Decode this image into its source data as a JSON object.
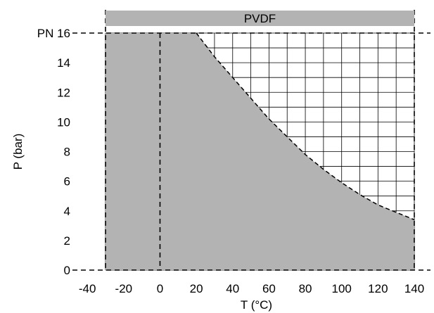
{
  "chart_data": {
    "type": "area",
    "title": "PVDF",
    "xlabel": "T (°C)",
    "ylabel": "P (bar)",
    "xlim": [
      -40,
      140
    ],
    "ylim": [
      0,
      16
    ],
    "x_ticks": [
      "-40",
      "-20",
      "0",
      "20",
      "40",
      "60",
      "80",
      "100",
      "120",
      "140"
    ],
    "x_tick_values": [
      -40,
      -20,
      0,
      20,
      40,
      60,
      80,
      100,
      120,
      140
    ],
    "y_ticks": [
      "0",
      "2",
      "4",
      "6",
      "8",
      "10",
      "12",
      "14",
      "PN 16"
    ],
    "y_tick_values": [
      0,
      2,
      4,
      6,
      8,
      10,
      12,
      14,
      16
    ],
    "grid": true,
    "series": [
      {
        "x": [
          -30,
          20,
          25,
          30,
          40,
          50,
          60,
          70,
          80,
          90,
          100,
          110,
          120,
          130,
          140,
          140
        ],
        "y": [
          16,
          16,
          15.2,
          14.4,
          13.0,
          11.6,
          10.2,
          9.0,
          7.8,
          6.8,
          5.9,
          5.1,
          4.4,
          3.9,
          3.4,
          0
        ],
        "fill": "#b3b3b3",
        "line_style": "dashed"
      }
    ],
    "reference_lines": {
      "vertical": [
        -30,
        0,
        140
      ],
      "horizontal": [
        0,
        16
      ]
    }
  },
  "colors": {
    "fill": "#b3b3b3",
    "banner": "#b3b3b3",
    "grid": "#000000"
  }
}
